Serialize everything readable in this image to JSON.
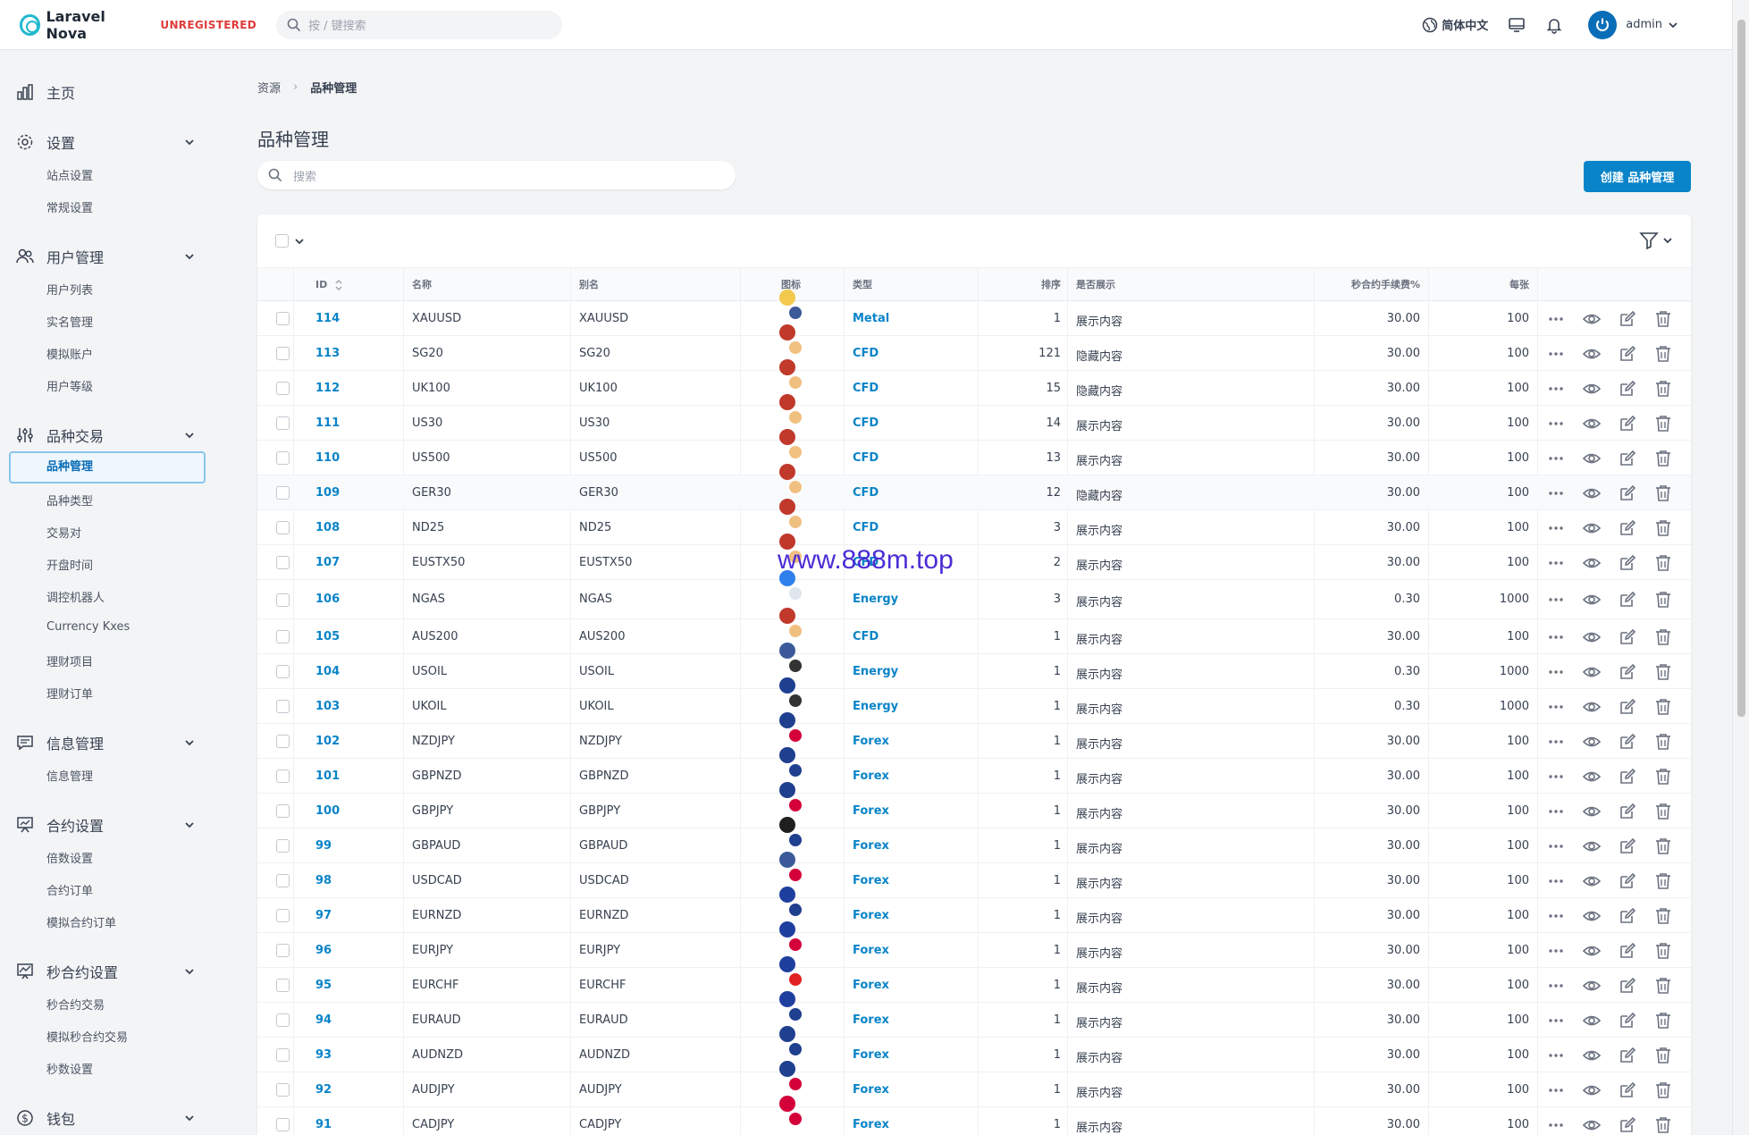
{
  "header": {
    "brand": "Laravel Nova",
    "badge": "UNREGISTERED",
    "search_placeholder": "按 / 键搜索",
    "language": "简体中文",
    "user": "admin"
  },
  "sidebar": {
    "home": "主页",
    "sections": [
      {
        "label": "设置",
        "icon": "gear-icon",
        "items": [
          "站点设置",
          "常规设置"
        ]
      },
      {
        "label": "用户管理",
        "icon": "users-icon",
        "items": [
          "用户列表",
          "实名管理",
          "模拟账户",
          "用户等级"
        ]
      },
      {
        "label": "品种交易",
        "icon": "sliders-icon",
        "items": [
          "品种管理",
          "品种类型",
          "交易对",
          "开盘时间",
          "调控机器人",
          "Currency Kxes",
          "理财项目",
          "理财订单"
        ]
      },
      {
        "label": "信息管理",
        "icon": "chat-icon",
        "items": [
          "信息管理"
        ]
      },
      {
        "label": "合约设置",
        "icon": "presentation-icon",
        "items": [
          "倍数设置",
          "合约订单",
          "模拟合约订单"
        ]
      },
      {
        "label": "秒合约设置",
        "icon": "chart-icon",
        "items": [
          "秒合约交易",
          "模拟秒合约交易",
          "秒数设置"
        ]
      },
      {
        "label": "钱包",
        "icon": "dollar-icon",
        "items": []
      }
    ]
  },
  "breadcrumb": {
    "root": "资源",
    "current": "品种管理"
  },
  "page": {
    "title": "品种管理",
    "search_placeholder": "搜索",
    "create_button": "创建 品种管理"
  },
  "table": {
    "headers": {
      "id": "ID",
      "name": "名称",
      "alias": "别名",
      "icon": "图标",
      "type": "类型",
      "sort": "排序",
      "show": "是否展示",
      "fee": "秒合约手续费%",
      "per": "每张"
    },
    "rows": [
      {
        "id": "114",
        "name": "XAUUSD",
        "alias": "XAUUSD",
        "flag": [
          "#f2c94c",
          "#3c5a9a"
        ],
        "type": "Metal",
        "sort": "1",
        "show": "展示内容",
        "fee": "30.00",
        "per": "100"
      },
      {
        "id": "113",
        "name": "SG20",
        "alias": "SG20",
        "flag": [
          "#c0392b",
          "#f0c080"
        ],
        "type": "CFD",
        "sort": "121",
        "show": "隐藏内容",
        "fee": "30.00",
        "per": "100"
      },
      {
        "id": "112",
        "name": "UK100",
        "alias": "UK100",
        "flag": [
          "#c0392b",
          "#f0c080"
        ],
        "type": "CFD",
        "sort": "15",
        "show": "隐藏内容",
        "fee": "30.00",
        "per": "100"
      },
      {
        "id": "111",
        "name": "US30",
        "alias": "US30",
        "flag": [
          "#c0392b",
          "#f0c080"
        ],
        "type": "CFD",
        "sort": "14",
        "show": "展示内容",
        "fee": "30.00",
        "per": "100"
      },
      {
        "id": "110",
        "name": "US500",
        "alias": "US500",
        "flag": [
          "#c0392b",
          "#f0c080"
        ],
        "type": "CFD",
        "sort": "13",
        "show": "展示内容",
        "fee": "30.00",
        "per": "100"
      },
      {
        "id": "109",
        "name": "GER30",
        "alias": "GER30",
        "flag": [
          "#c0392b",
          "#f0c080"
        ],
        "type": "CFD",
        "sort": "12",
        "show": "隐藏内容",
        "fee": "30.00",
        "per": "100"
      },
      {
        "id": "108",
        "name": "ND25",
        "alias": "ND25",
        "flag": [
          "#c0392b",
          "#f0c080"
        ],
        "type": "CFD",
        "sort": "3",
        "show": "展示内容",
        "fee": "30.00",
        "per": "100"
      },
      {
        "id": "107",
        "name": "EUSTX50",
        "alias": "EUSTX50",
        "flag": [
          "#c0392b",
          "#f0c080"
        ],
        "type": "CFD",
        "sort": "2",
        "show": "展示内容",
        "fee": "30.00",
        "per": "100"
      },
      {
        "id": "106",
        "name": "NGAS",
        "alias": "NGAS",
        "flag": [
          "#2f80ed",
          "#dfe6ee"
        ],
        "type": "Energy",
        "sort": "3",
        "show": "展示内容",
        "fee": "0.30",
        "per": "1000"
      },
      {
        "id": "105",
        "name": "AUS200",
        "alias": "AUS200",
        "flag": [
          "#c0392b",
          "#f0c080"
        ],
        "type": "CFD",
        "sort": "1",
        "show": "展示内容",
        "fee": "30.00",
        "per": "100"
      },
      {
        "id": "104",
        "name": "USOIL",
        "alias": "USOIL",
        "flag": [
          "#3c5a9a",
          "#333333"
        ],
        "type": "Energy",
        "sort": "1",
        "show": "展示内容",
        "fee": "0.30",
        "per": "1000"
      },
      {
        "id": "103",
        "name": "UKOIL",
        "alias": "UKOIL",
        "flag": [
          "#1f3f8f",
          "#333333"
        ],
        "type": "Energy",
        "sort": "1",
        "show": "展示内容",
        "fee": "0.30",
        "per": "1000"
      },
      {
        "id": "102",
        "name": "NZDJPY",
        "alias": "NZDJPY",
        "flag": [
          "#1f3f8f",
          "#d4003a"
        ],
        "type": "Forex",
        "sort": "1",
        "show": "展示内容",
        "fee": "30.00",
        "per": "100"
      },
      {
        "id": "101",
        "name": "GBPNZD",
        "alias": "GBPNZD",
        "flag": [
          "#1f3f8f",
          "#1f3f8f"
        ],
        "type": "Forex",
        "sort": "1",
        "show": "展示内容",
        "fee": "30.00",
        "per": "100"
      },
      {
        "id": "100",
        "name": "GBPJPY",
        "alias": "GBPJPY",
        "flag": [
          "#1f3f8f",
          "#d4003a"
        ],
        "type": "Forex",
        "sort": "1",
        "show": "展示内容",
        "fee": "30.00",
        "per": "100"
      },
      {
        "id": "99",
        "name": "GBPAUD",
        "alias": "GBPAUD",
        "flag": [
          "#1f1f1f",
          "#1f3f8f"
        ],
        "type": "Forex",
        "sort": "1",
        "show": "展示内容",
        "fee": "30.00",
        "per": "100"
      },
      {
        "id": "98",
        "name": "USDCAD",
        "alias": "USDCAD",
        "flag": [
          "#3c5a9a",
          "#d4003a"
        ],
        "type": "Forex",
        "sort": "1",
        "show": "展示内容",
        "fee": "30.00",
        "per": "100"
      },
      {
        "id": "97",
        "name": "EURNZD",
        "alias": "EURNZD",
        "flag": [
          "#1f3f9f",
          "#1f3f8f"
        ],
        "type": "Forex",
        "sort": "1",
        "show": "展示内容",
        "fee": "30.00",
        "per": "100"
      },
      {
        "id": "96",
        "name": "EURJPY",
        "alias": "EURJPY",
        "flag": [
          "#1f3f9f",
          "#d4003a"
        ],
        "type": "Forex",
        "sort": "1",
        "show": "展示内容",
        "fee": "30.00",
        "per": "100"
      },
      {
        "id": "95",
        "name": "EURCHF",
        "alias": "EURCHF",
        "flag": [
          "#1f3f9f",
          "#e02020"
        ],
        "type": "Forex",
        "sort": "1",
        "show": "展示内容",
        "fee": "30.00",
        "per": "100"
      },
      {
        "id": "94",
        "name": "EURAUD",
        "alias": "EURAUD",
        "flag": [
          "#1f3f9f",
          "#1f3f8f"
        ],
        "type": "Forex",
        "sort": "1",
        "show": "展示内容",
        "fee": "30.00",
        "per": "100"
      },
      {
        "id": "93",
        "name": "AUDNZD",
        "alias": "AUDNZD",
        "flag": [
          "#1f3f8f",
          "#1f3f8f"
        ],
        "type": "Forex",
        "sort": "1",
        "show": "展示内容",
        "fee": "30.00",
        "per": "100"
      },
      {
        "id": "92",
        "name": "AUDJPY",
        "alias": "AUDJPY",
        "flag": [
          "#1f3f8f",
          "#d4003a"
        ],
        "type": "Forex",
        "sort": "1",
        "show": "展示内容",
        "fee": "30.00",
        "per": "100"
      },
      {
        "id": "91",
        "name": "CADJPY",
        "alias": "CADJPY",
        "flag": [
          "#d4003a",
          "#d4003a"
        ],
        "type": "Forex",
        "sort": "1",
        "show": "展示内容",
        "fee": "30.00",
        "per": "100"
      }
    ]
  },
  "watermark": "www.888m.top",
  "colors": {
    "accent": "#0a84c8",
    "badge": "#e03b3b"
  }
}
